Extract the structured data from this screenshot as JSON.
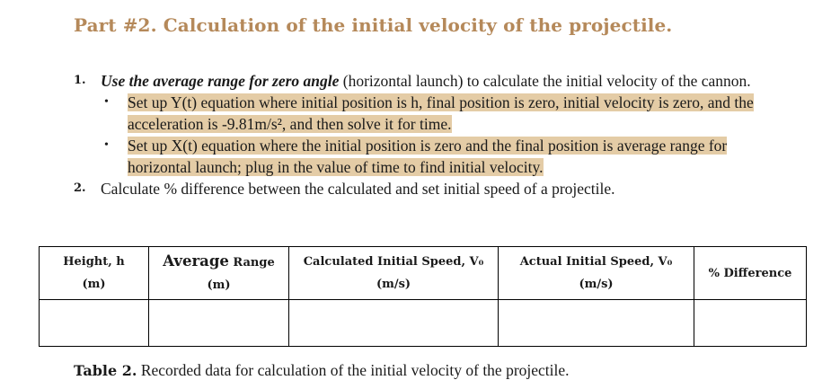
{
  "section": {
    "title": "Part #2. Calculation of the initial velocity of the projectile."
  },
  "steps": [
    {
      "number": "1.",
      "emphasis": "Use the average range for zero angle",
      "text": " (horizontal launch) to calculate the initial velocity of the cannon.",
      "bullets": [
        "Set up Y(t) equation where initial position is h, final position is zero, initial velocity is zero, and the acceleration is -9.81m/s², and then solve it for time.",
        "Set up X(t) equation where the initial position is zero and the final position is average range for horizontal launch; plug in the value of time to find initial velocity."
      ]
    },
    {
      "number": "2.",
      "text": "Calculate % difference between the calculated and set initial speed of a projectile."
    }
  ],
  "table": {
    "headers": [
      {
        "line1": "Height, h",
        "line2": "(m)"
      },
      {
        "line1a": "Average",
        "line1b": " Range",
        "line2": "(m)"
      },
      {
        "line1": "Calculated Initial Speed, V₀",
        "line2": "(m/s)"
      },
      {
        "line1": "Actual Initial Speed, V₀",
        "line2": "(m/s)"
      },
      {
        "line1": "% Difference"
      }
    ],
    "rows": [
      [
        "",
        "",
        "",
        "",
        ""
      ]
    ]
  },
  "caption": {
    "label": "Table 2.",
    "text": "Recorded data for calculation of the initial velocity of the projectile."
  }
}
